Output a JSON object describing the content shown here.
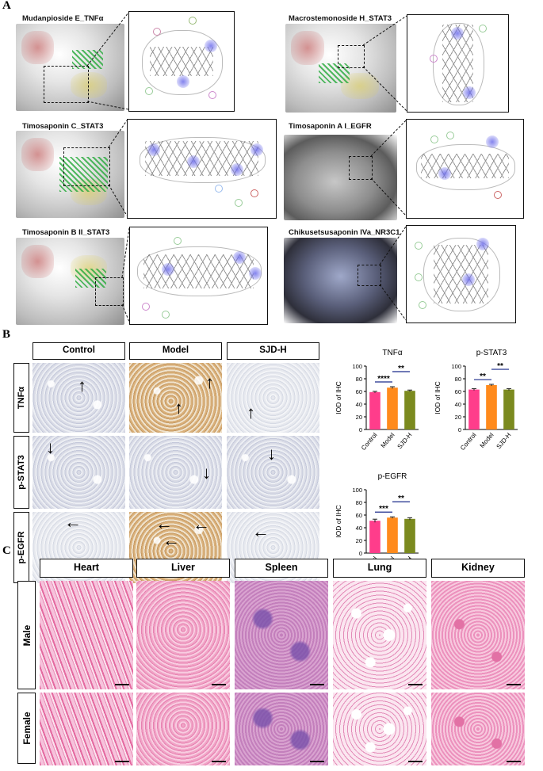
{
  "panel_letters": [
    "A",
    "B",
    "C"
  ],
  "docking": [
    {
      "title": "Mudanpioside E_TNFα"
    },
    {
      "title": "Macrostemonoside H_STAT3"
    },
    {
      "title": "Timosaponin C_STAT3"
    },
    {
      "title": "Timosaponin A I_EGFR"
    },
    {
      "title": "Timosaponin B II_STAT3"
    },
    {
      "title": "Chikusetsusaponin IVa_NR3C1"
    }
  ],
  "ihc": {
    "columns": [
      "Control",
      "Model",
      "SJD-H"
    ],
    "rows": [
      "TNFα",
      "p-STAT3",
      "p-EGFR"
    ]
  },
  "histology": {
    "columns": [
      "Heart",
      "Liver",
      "Spleen",
      "Lung",
      "Kidney"
    ],
    "rows": [
      "Male",
      "Female"
    ]
  },
  "chart_data": [
    {
      "type": "bar",
      "title": "TNFα",
      "ylabel": "IOD of IHC",
      "categories": [
        "Control",
        "Model",
        "SJD-H"
      ],
      "values": [
        59,
        66,
        61
      ],
      "errors": [
        1.2,
        1.5,
        1.2
      ],
      "ylim": [
        0,
        100
      ],
      "yticks": [
        "0",
        "20",
        "40",
        "60",
        "80",
        "100"
      ],
      "colors": [
        "#ff3d8b",
        "#ff8a1c",
        "#7b8a1f"
      ],
      "significance": [
        {
          "from": 0,
          "to": 1,
          "label": "****"
        },
        {
          "from": 1,
          "to": 2,
          "label": "**"
        }
      ]
    },
    {
      "type": "bar",
      "title": "p-STAT3",
      "ylabel": "IOD of IHC",
      "categories": [
        "Control",
        "Model",
        "SJD-H"
      ],
      "values": [
        63,
        70,
        63
      ],
      "errors": [
        1.5,
        1.2,
        1.5
      ],
      "ylim": [
        0,
        100
      ],
      "yticks": [
        "0",
        "20",
        "40",
        "60",
        "80",
        "100"
      ],
      "colors": [
        "#ff3d8b",
        "#ff8a1c",
        "#7b8a1f"
      ],
      "significance": [
        {
          "from": 0,
          "to": 1,
          "label": "**"
        },
        {
          "from": 1,
          "to": 2,
          "label": "**"
        }
      ]
    },
    {
      "type": "bar",
      "title": "p-EGFR",
      "ylabel": "IOD of IHC",
      "categories": [
        "Control",
        "Model",
        "SJD-H"
      ],
      "values": [
        51,
        56,
        54
      ],
      "errors": [
        2.5,
        1.2,
        1.8
      ],
      "ylim": [
        0,
        100
      ],
      "yticks": [
        "0",
        "20",
        "40",
        "60",
        "80",
        "100"
      ],
      "colors": [
        "#ff3d8b",
        "#ff8a1c",
        "#7b8a1f"
      ],
      "significance": [
        {
          "from": 0,
          "to": 1,
          "label": "***"
        },
        {
          "from": 1,
          "to": 2,
          "label": "**"
        }
      ]
    }
  ]
}
